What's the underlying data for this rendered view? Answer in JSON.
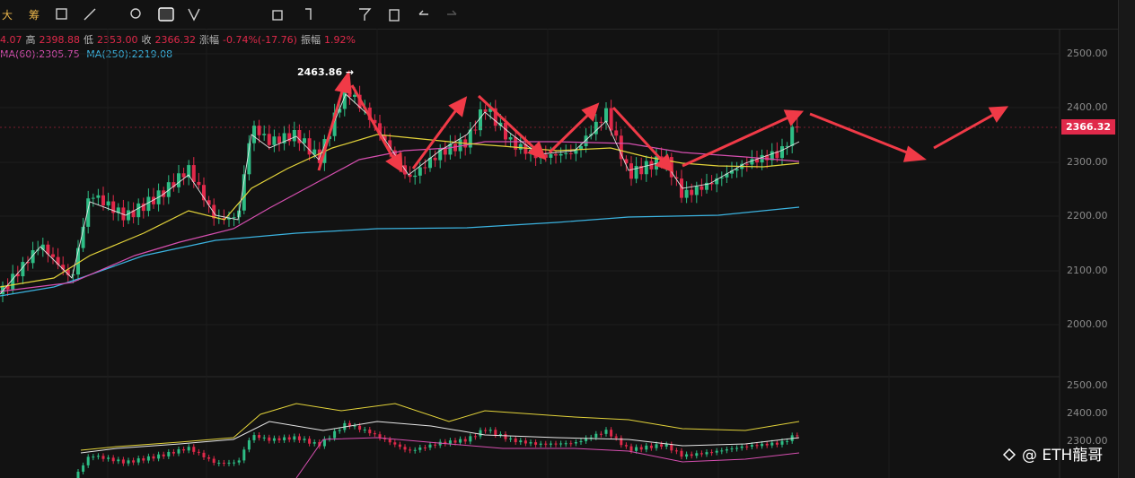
{
  "toolbar": {
    "items": [
      "大",
      "筹"
    ]
  },
  "header": {
    "ohlc": [
      {
        "label": "",
        "value": "4.07"
      },
      {
        "label": "高",
        "value": "2398.88"
      },
      {
        "label": "低",
        "value": "2353.00"
      },
      {
        "label": "收",
        "value": "2366.32"
      },
      {
        "label": "涨幅",
        "value": "-0.74%(-17.76)"
      },
      {
        "label": "振幅",
        "value": "1.92%"
      }
    ],
    "ma": [
      "MA(60):2305.75",
      "MA(250):2219.08"
    ]
  },
  "chart": {
    "peak_label": "2463.86 →",
    "current_price": "2366.32",
    "axis_labels": [
      "2500.00",
      "2400.00",
      "2300.00",
      "2200.00",
      "2100.00",
      "2000.00"
    ],
    "sub_axis_labels": [
      "2500.00",
      "2400.00",
      "2300.00"
    ]
  },
  "watermark": "@ ETH龍哥"
}
